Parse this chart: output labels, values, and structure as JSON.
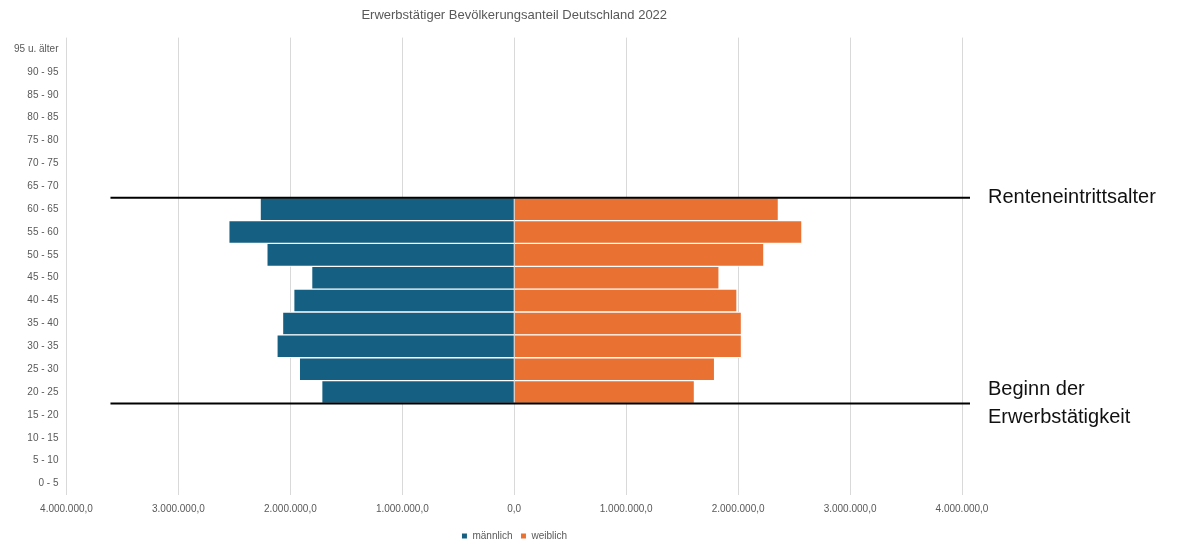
{
  "chart_data": {
    "type": "bar",
    "orientation": "horizontal",
    "stacked": true,
    "title": "Erwerbstätiger Bevölkerungsanteil Deutschland 2022",
    "categories": [
      "95 u. älter",
      "90 - 95",
      "85 - 90",
      "80 - 85",
      "75 - 80",
      "70 - 75",
      "65 - 70",
      "60 - 65",
      "55 - 60",
      "50 - 55",
      "45 - 50",
      "40 - 45",
      "35 - 40",
      "30 - 35",
      "25 - 30",
      "20 - 25",
      "15 - 20",
      "10 - 15",
      "5 - 10",
      "0 - 5"
    ],
    "series": [
      {
        "name": "männlich",
        "color": "#156082",
        "values": [
          null,
          null,
          null,
          null,
          null,
          null,
          null,
          -2270000,
          -2550000,
          -2210000,
          -1810000,
          -1970000,
          -2070000,
          -2120000,
          -1920000,
          -1720000,
          null,
          null,
          null,
          null
        ]
      },
      {
        "name": "weiblich",
        "color": "#e97132",
        "values": [
          null,
          null,
          null,
          null,
          null,
          null,
          null,
          2360000,
          2570000,
          2230000,
          1830000,
          1990000,
          2030000,
          2030000,
          1790000,
          1610000,
          null,
          null,
          null,
          null
        ]
      }
    ],
    "xlim": [
      -4000000,
      4000000
    ],
    "xticks": [
      {
        "value": -4000000,
        "label": "4.000.000,0"
      },
      {
        "value": -3000000,
        "label": "3.000.000,0"
      },
      {
        "value": -2000000,
        "label": "2.000.000,0"
      },
      {
        "value": -1000000,
        "label": "1.000.000,0"
      },
      {
        "value": 0,
        "label": "0,0"
      },
      {
        "value": 1000000,
        "label": "1.000.000,0"
      },
      {
        "value": 2000000,
        "label": "2.000.000,0"
      },
      {
        "value": 3000000,
        "label": "3.000.000,0"
      },
      {
        "value": 4000000,
        "label": "4.000.000,0"
      }
    ],
    "grid": "x",
    "legend": "bottom",
    "ref_lines": [
      {
        "axis": "y",
        "value": "65 - 70",
        "label": "Renteneintrittsalter",
        "color": "#000000"
      },
      {
        "axis": "y",
        "value": "20 - 25",
        "label": "Beginn der Erwerbstätigkeit",
        "color": "#000000"
      }
    ]
  }
}
